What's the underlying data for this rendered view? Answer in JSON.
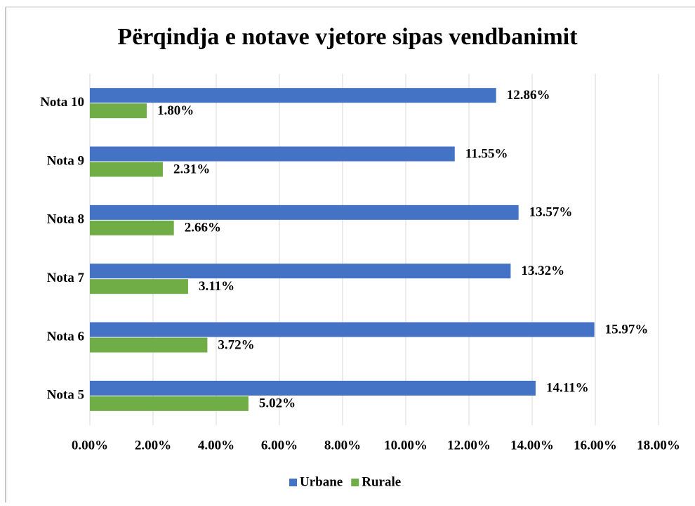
{
  "chart_data": {
    "type": "bar",
    "orientation": "horizontal",
    "title": "Përqindja e notave vjetore sipas vendbanimit",
    "categories": [
      "Nota 10",
      "Nota 9",
      "Nota 8",
      "Nota 7",
      "Nota 6",
      "Nota 5"
    ],
    "series": [
      {
        "name": "Urbane",
        "color": "#4472c4",
        "values": [
          12.86,
          11.55,
          13.57,
          13.32,
          15.97,
          14.11
        ],
        "value_labels": [
          "12.86%",
          "11.55%",
          "13.57%",
          "13.32%",
          "15.97%",
          "14.11%"
        ]
      },
      {
        "name": "Rurale",
        "color": "#70ad47",
        "values": [
          1.8,
          2.31,
          2.66,
          3.11,
          3.72,
          5.02
        ],
        "value_labels": [
          "1.80%",
          "2.31%",
          "2.66%",
          "3.11%",
          "3.72%",
          "5.02%"
        ]
      }
    ],
    "xlim": [
      0,
      18
    ],
    "xticks": [
      {
        "value": 0,
        "label": "0.00%"
      },
      {
        "value": 2,
        "label": "2.00%"
      },
      {
        "value": 4,
        "label": "4.00%"
      },
      {
        "value": 6,
        "label": "6.00%"
      },
      {
        "value": 8,
        "label": "8.00%"
      },
      {
        "value": 10,
        "label": "10.00%"
      },
      {
        "value": 12,
        "label": "12.00%"
      },
      {
        "value": 14,
        "label": "14.00%"
      },
      {
        "value": 16,
        "label": "16.00%"
      },
      {
        "value": 18,
        "label": "18.00%"
      }
    ],
    "grid": true,
    "legend": "bottom"
  }
}
